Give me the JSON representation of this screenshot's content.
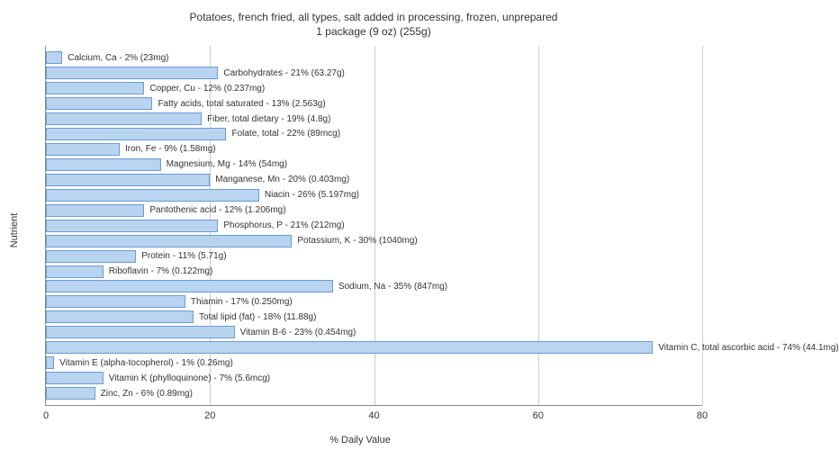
{
  "chart": {
    "type": "bar",
    "title_line1": "Potatoes, french fried, all types, salt added in processing, frozen, unprepared",
    "title_line2": "1 package (9 oz) (255g)",
    "xlabel": "% Daily Value",
    "ylabel": "Nutrient",
    "xlim": [
      0,
      80
    ],
    "xtick_step": 20,
    "xticks": [
      "0",
      "20",
      "40",
      "60",
      "80"
    ],
    "bar_color": "#b8d4f0",
    "bar_border": "#6b9bd1",
    "grid_color": "#cccccc",
    "background_color": "#ffffff",
    "label_fontsize": 10,
    "title_fontsize": 12,
    "nutrients": [
      {
        "label": "Calcium, Ca - 2% (23mg)",
        "value": 2
      },
      {
        "label": "Carbohydrates - 21% (63.27g)",
        "value": 21
      },
      {
        "label": "Copper, Cu - 12% (0.237mg)",
        "value": 12
      },
      {
        "label": "Fatty acids, total saturated - 13% (2.563g)",
        "value": 13
      },
      {
        "label": "Fiber, total dietary - 19% (4.8g)",
        "value": 19
      },
      {
        "label": "Folate, total - 22% (89mcg)",
        "value": 22
      },
      {
        "label": "Iron, Fe - 9% (1.58mg)",
        "value": 9
      },
      {
        "label": "Magnesium, Mg - 14% (54mg)",
        "value": 14
      },
      {
        "label": "Manganese, Mn - 20% (0.403mg)",
        "value": 20
      },
      {
        "label": "Niacin - 26% (5.197mg)",
        "value": 26
      },
      {
        "label": "Pantothenic acid - 12% (1.206mg)",
        "value": 12
      },
      {
        "label": "Phosphorus, P - 21% (212mg)",
        "value": 21
      },
      {
        "label": "Potassium, K - 30% (1040mg)",
        "value": 30
      },
      {
        "label": "Protein - 11% (5.71g)",
        "value": 11
      },
      {
        "label": "Riboflavin - 7% (0.122mg)",
        "value": 7
      },
      {
        "label": "Sodium, Na - 35% (847mg)",
        "value": 35
      },
      {
        "label": "Thiamin - 17% (0.250mg)",
        "value": 17
      },
      {
        "label": "Total lipid (fat) - 18% (11.88g)",
        "value": 18
      },
      {
        "label": "Vitamin B-6 - 23% (0.454mg)",
        "value": 23
      },
      {
        "label": "Vitamin C, total ascorbic acid - 74% (44.1mg)",
        "value": 74
      },
      {
        "label": "Vitamin E (alpha-tocopherol) - 1% (0.26mg)",
        "value": 1
      },
      {
        "label": "Vitamin K (phylloquinone) - 7% (5.6mcg)",
        "value": 7
      },
      {
        "label": "Zinc, Zn - 6% (0.89mg)",
        "value": 6
      }
    ]
  }
}
